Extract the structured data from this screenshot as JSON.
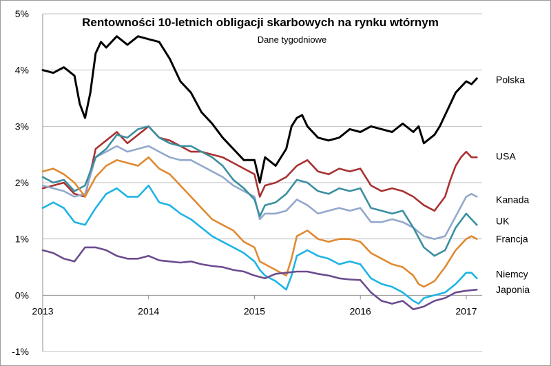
{
  "chart_data": {
    "type": "line",
    "title": "Rentowności 10-letnich obligacji skarbowych na rynku wtórnym",
    "subtitle": "Dane tygodniowe",
    "xlabel": "",
    "ylabel": "",
    "xlim": [
      2013.0,
      2017.15
    ],
    "ylim": [
      -1,
      5
    ],
    "x_ticks": [
      "2013",
      "2014",
      "2015",
      "2016",
      "2017"
    ],
    "y_ticks": [
      "-1%",
      "0%",
      "1%",
      "2%",
      "3%",
      "4%",
      "5%"
    ],
    "grid": "horizontal",
    "legend": "line-end labels",
    "series": [
      {
        "name": "Polska",
        "color": "#000000",
        "x": [
          2013.0,
          2013.1,
          2013.2,
          2013.3,
          2013.35,
          2013.4,
          2013.45,
          2013.5,
          2013.55,
          2013.6,
          2013.65,
          2013.7,
          2013.8,
          2013.9,
          2014.0,
          2014.1,
          2014.2,
          2014.3,
          2014.4,
          2014.5,
          2014.6,
          2014.7,
          2014.8,
          2014.9,
          2015.0,
          2015.05,
          2015.1,
          2015.2,
          2015.3,
          2015.35,
          2015.4,
          2015.45,
          2015.5,
          2015.6,
          2015.7,
          2015.8,
          2015.9,
          2016.0,
          2016.1,
          2016.2,
          2016.3,
          2016.4,
          2016.5,
          2016.55,
          2016.6,
          2016.7,
          2016.75,
          2016.8,
          2016.9,
          2017.0,
          2017.05,
          2017.1
        ],
        "values": [
          4.0,
          3.95,
          4.05,
          3.9,
          3.4,
          3.15,
          3.6,
          4.3,
          4.5,
          4.4,
          4.5,
          4.6,
          4.45,
          4.6,
          4.55,
          4.5,
          4.2,
          3.8,
          3.6,
          3.25,
          3.05,
          2.8,
          2.6,
          2.4,
          2.4,
          2.0,
          2.45,
          2.3,
          2.6,
          3.0,
          3.15,
          3.2,
          3.0,
          2.8,
          2.75,
          2.8,
          2.95,
          2.9,
          3.0,
          2.95,
          2.9,
          3.05,
          2.9,
          3.0,
          2.7,
          2.85,
          3.0,
          3.2,
          3.6,
          3.8,
          3.75,
          3.85
        ]
      },
      {
        "name": "USA",
        "color": "#a83232",
        "x": [
          2013.0,
          2013.1,
          2013.2,
          2013.3,
          2013.4,
          2013.5,
          2013.6,
          2013.7,
          2013.8,
          2013.9,
          2014.0,
          2014.1,
          2014.2,
          2014.3,
          2014.4,
          2014.5,
          2014.6,
          2014.7,
          2014.8,
          2014.9,
          2015.0,
          2015.05,
          2015.1,
          2015.2,
          2015.3,
          2015.4,
          2015.5,
          2015.6,
          2015.7,
          2015.8,
          2015.9,
          2016.0,
          2016.1,
          2016.2,
          2016.3,
          2016.4,
          2016.5,
          2016.6,
          2016.7,
          2016.8,
          2016.85,
          2016.9,
          2016.95,
          2017.0,
          2017.05,
          2017.1
        ],
        "values": [
          1.9,
          1.95,
          2.0,
          1.8,
          1.75,
          2.6,
          2.75,
          2.9,
          2.7,
          2.85,
          3.0,
          2.8,
          2.75,
          2.65,
          2.55,
          2.55,
          2.5,
          2.45,
          2.35,
          2.25,
          2.15,
          1.75,
          1.95,
          2.0,
          2.1,
          2.3,
          2.4,
          2.2,
          2.15,
          2.25,
          2.2,
          2.25,
          1.95,
          1.85,
          1.9,
          1.85,
          1.75,
          1.6,
          1.5,
          1.75,
          2.05,
          2.3,
          2.45,
          2.55,
          2.45,
          2.45
        ]
      },
      {
        "name": "Kanada",
        "color": "#93a8cc",
        "x": [
          2013.0,
          2013.1,
          2013.2,
          2013.3,
          2013.4,
          2013.5,
          2013.6,
          2013.7,
          2013.8,
          2013.9,
          2014.0,
          2014.1,
          2014.2,
          2014.3,
          2014.4,
          2014.5,
          2014.6,
          2014.7,
          2014.8,
          2014.9,
          2015.0,
          2015.05,
          2015.1,
          2015.2,
          2015.3,
          2015.4,
          2015.5,
          2015.6,
          2015.7,
          2015.8,
          2015.9,
          2016.0,
          2016.1,
          2016.2,
          2016.3,
          2016.4,
          2016.5,
          2016.6,
          2016.7,
          2016.8,
          2016.9,
          2017.0,
          2017.05,
          2017.1
        ],
        "values": [
          1.95,
          1.9,
          1.85,
          1.75,
          1.8,
          2.45,
          2.55,
          2.65,
          2.55,
          2.6,
          2.65,
          2.55,
          2.45,
          2.4,
          2.4,
          2.3,
          2.2,
          2.1,
          1.95,
          1.85,
          1.75,
          1.35,
          1.45,
          1.45,
          1.5,
          1.7,
          1.6,
          1.45,
          1.5,
          1.55,
          1.5,
          1.55,
          1.3,
          1.3,
          1.35,
          1.3,
          1.2,
          1.05,
          1.0,
          1.05,
          1.4,
          1.75,
          1.8,
          1.75
        ]
      },
      {
        "name": "UK",
        "color": "#3a8fa0",
        "x": [
          2013.0,
          2013.1,
          2013.2,
          2013.3,
          2013.4,
          2013.5,
          2013.6,
          2013.7,
          2013.8,
          2013.9,
          2014.0,
          2014.1,
          2014.2,
          2014.3,
          2014.4,
          2014.5,
          2014.6,
          2014.7,
          2014.8,
          2014.9,
          2015.0,
          2015.05,
          2015.1,
          2015.2,
          2015.3,
          2015.4,
          2015.5,
          2015.6,
          2015.7,
          2015.8,
          2015.9,
          2016.0,
          2016.1,
          2016.2,
          2016.3,
          2016.4,
          2016.5,
          2016.6,
          2016.7,
          2016.8,
          2016.9,
          2017.0,
          2017.05,
          2017.1
        ],
        "values": [
          2.1,
          2.0,
          2.05,
          1.85,
          1.95,
          2.45,
          2.6,
          2.85,
          2.8,
          2.95,
          3.0,
          2.8,
          2.7,
          2.65,
          2.65,
          2.55,
          2.45,
          2.3,
          2.05,
          1.9,
          1.7,
          1.4,
          1.6,
          1.65,
          1.8,
          2.05,
          2.0,
          1.85,
          1.8,
          1.9,
          1.85,
          1.9,
          1.55,
          1.5,
          1.45,
          1.5,
          1.2,
          0.85,
          0.7,
          0.8,
          1.2,
          1.45,
          1.35,
          1.25
        ]
      },
      {
        "name": "Francja",
        "color": "#e08a33",
        "x": [
          2013.0,
          2013.1,
          2013.2,
          2013.3,
          2013.4,
          2013.5,
          2013.6,
          2013.7,
          2013.8,
          2013.9,
          2014.0,
          2014.1,
          2014.2,
          2014.3,
          2014.4,
          2014.5,
          2014.6,
          2014.7,
          2014.8,
          2014.9,
          2015.0,
          2015.05,
          2015.1,
          2015.2,
          2015.3,
          2015.35,
          2015.4,
          2015.5,
          2015.6,
          2015.7,
          2015.8,
          2015.9,
          2016.0,
          2016.1,
          2016.2,
          2016.3,
          2016.4,
          2016.5,
          2016.55,
          2016.6,
          2016.7,
          2016.8,
          2016.9,
          2017.0,
          2017.05,
          2017.1
        ],
        "values": [
          2.2,
          2.25,
          2.15,
          2.0,
          1.75,
          2.1,
          2.3,
          2.4,
          2.35,
          2.3,
          2.45,
          2.25,
          2.15,
          1.95,
          1.75,
          1.55,
          1.35,
          1.25,
          1.15,
          0.95,
          0.85,
          0.6,
          0.55,
          0.45,
          0.35,
          0.65,
          1.05,
          1.15,
          1.0,
          0.95,
          1.0,
          1.0,
          0.95,
          0.75,
          0.65,
          0.55,
          0.5,
          0.35,
          0.2,
          0.15,
          0.25,
          0.5,
          0.8,
          1.0,
          1.05,
          1.0
        ]
      },
      {
        "name": "Niemcy",
        "color": "#1eb4e6",
        "x": [
          2013.0,
          2013.1,
          2013.2,
          2013.3,
          2013.4,
          2013.5,
          2013.6,
          2013.7,
          2013.8,
          2013.9,
          2014.0,
          2014.1,
          2014.2,
          2014.3,
          2014.4,
          2014.5,
          2014.6,
          2014.7,
          2014.8,
          2014.9,
          2015.0,
          2015.05,
          2015.1,
          2015.2,
          2015.3,
          2015.35,
          2015.4,
          2015.5,
          2015.6,
          2015.7,
          2015.8,
          2015.9,
          2016.0,
          2016.1,
          2016.2,
          2016.3,
          2016.4,
          2016.5,
          2016.55,
          2016.6,
          2016.7,
          2016.8,
          2016.9,
          2017.0,
          2017.05,
          2017.1
        ],
        "values": [
          1.55,
          1.65,
          1.55,
          1.3,
          1.25,
          1.55,
          1.8,
          1.9,
          1.75,
          1.75,
          1.95,
          1.65,
          1.6,
          1.45,
          1.35,
          1.2,
          1.05,
          0.95,
          0.85,
          0.75,
          0.6,
          0.45,
          0.35,
          0.25,
          0.1,
          0.35,
          0.7,
          0.8,
          0.7,
          0.65,
          0.55,
          0.6,
          0.55,
          0.3,
          0.2,
          0.15,
          0.05,
          -0.1,
          -0.15,
          -0.05,
          0.0,
          0.05,
          0.2,
          0.4,
          0.4,
          0.3
        ]
      },
      {
        "name": "Japonia",
        "color": "#6b4c8f",
        "x": [
          2013.0,
          2013.1,
          2013.2,
          2013.3,
          2013.4,
          2013.5,
          2013.6,
          2013.7,
          2013.8,
          2013.9,
          2014.0,
          2014.1,
          2014.2,
          2014.3,
          2014.4,
          2014.5,
          2014.6,
          2014.7,
          2014.8,
          2014.9,
          2015.0,
          2015.1,
          2015.2,
          2015.3,
          2015.4,
          2015.5,
          2015.6,
          2015.7,
          2015.8,
          2015.9,
          2016.0,
          2016.1,
          2016.2,
          2016.3,
          2016.4,
          2016.5,
          2016.6,
          2016.7,
          2016.8,
          2016.9,
          2017.0,
          2017.1
        ],
        "values": [
          0.8,
          0.75,
          0.65,
          0.6,
          0.85,
          0.85,
          0.8,
          0.7,
          0.65,
          0.65,
          0.7,
          0.62,
          0.6,
          0.58,
          0.6,
          0.55,
          0.52,
          0.5,
          0.45,
          0.42,
          0.35,
          0.3,
          0.38,
          0.4,
          0.42,
          0.42,
          0.38,
          0.35,
          0.3,
          0.28,
          0.27,
          0.05,
          -0.1,
          -0.15,
          -0.1,
          -0.25,
          -0.2,
          -0.1,
          -0.05,
          0.05,
          0.08,
          0.1
        ]
      }
    ]
  }
}
